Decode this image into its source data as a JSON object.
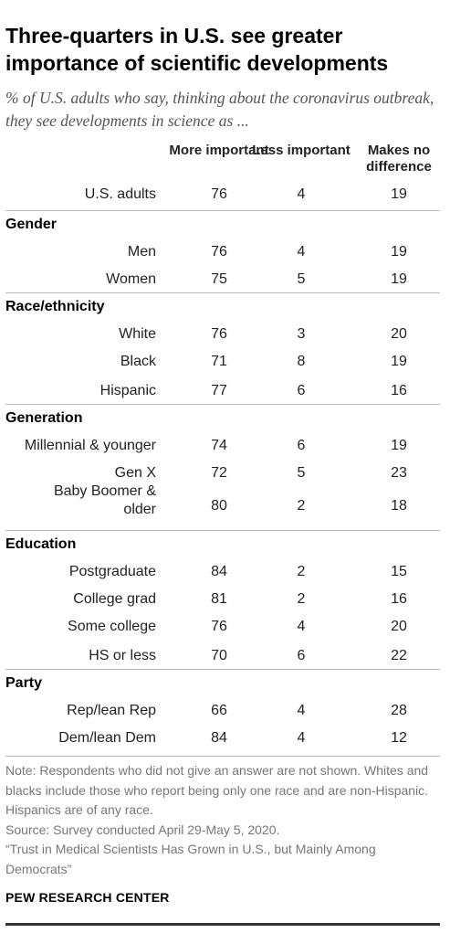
{
  "chart_data": {
    "type": "table",
    "title": "Three-quarters in U.S. see greater importance of scientific developments",
    "subtitle": "% of U.S. adults who say, thinking about the coronavirus outbreak, they see developments in science as ...",
    "columns": [
      "More important",
      "Less important",
      "Makes no difference"
    ],
    "rows": [
      {
        "label": "U.S. adults",
        "values": [
          76,
          4,
          19
        ]
      },
      {
        "group": "Gender"
      },
      {
        "label": "Men",
        "values": [
          76,
          4,
          19
        ]
      },
      {
        "label": "Women",
        "values": [
          75,
          5,
          19
        ]
      },
      {
        "group": "Race/ethnicity"
      },
      {
        "label": "White",
        "values": [
          76,
          3,
          20
        ]
      },
      {
        "label": "Black",
        "values": [
          71,
          8,
          19
        ]
      },
      {
        "label": "Hispanic",
        "values": [
          77,
          6,
          16
        ]
      },
      {
        "group": "Generation"
      },
      {
        "label": "Millennial & younger",
        "values": [
          74,
          6,
          19
        ]
      },
      {
        "label": "Gen X",
        "values": [
          72,
          5,
          23
        ]
      },
      {
        "label": "Baby Boomer & older",
        "values": [
          80,
          2,
          18
        ]
      },
      {
        "group": "Education"
      },
      {
        "label": "Postgraduate",
        "values": [
          84,
          2,
          15
        ]
      },
      {
        "label": "College grad",
        "values": [
          81,
          2,
          16
        ]
      },
      {
        "label": "Some college",
        "values": [
          76,
          4,
          20
        ]
      },
      {
        "label": "HS or less",
        "values": [
          70,
          6,
          22
        ]
      },
      {
        "group": "Party"
      },
      {
        "label": "Rep/lean Rep",
        "values": [
          66,
          4,
          28
        ]
      },
      {
        "label": "Dem/lean Dem",
        "values": [
          84,
          4,
          12
        ]
      }
    ]
  },
  "notes": [
    "Note: Respondents who did not give an answer are not shown. Whites and blacks include those who report being only one race and are non-Hispanic. Hispanics are of any race.",
    "Source: Survey conducted April 29-May 5, 2020.",
    "“Trust in Medical Scientists Has Grown in U.S., but Mainly Among Democrats”"
  ],
  "brand": "PEW RESEARCH CENTER"
}
